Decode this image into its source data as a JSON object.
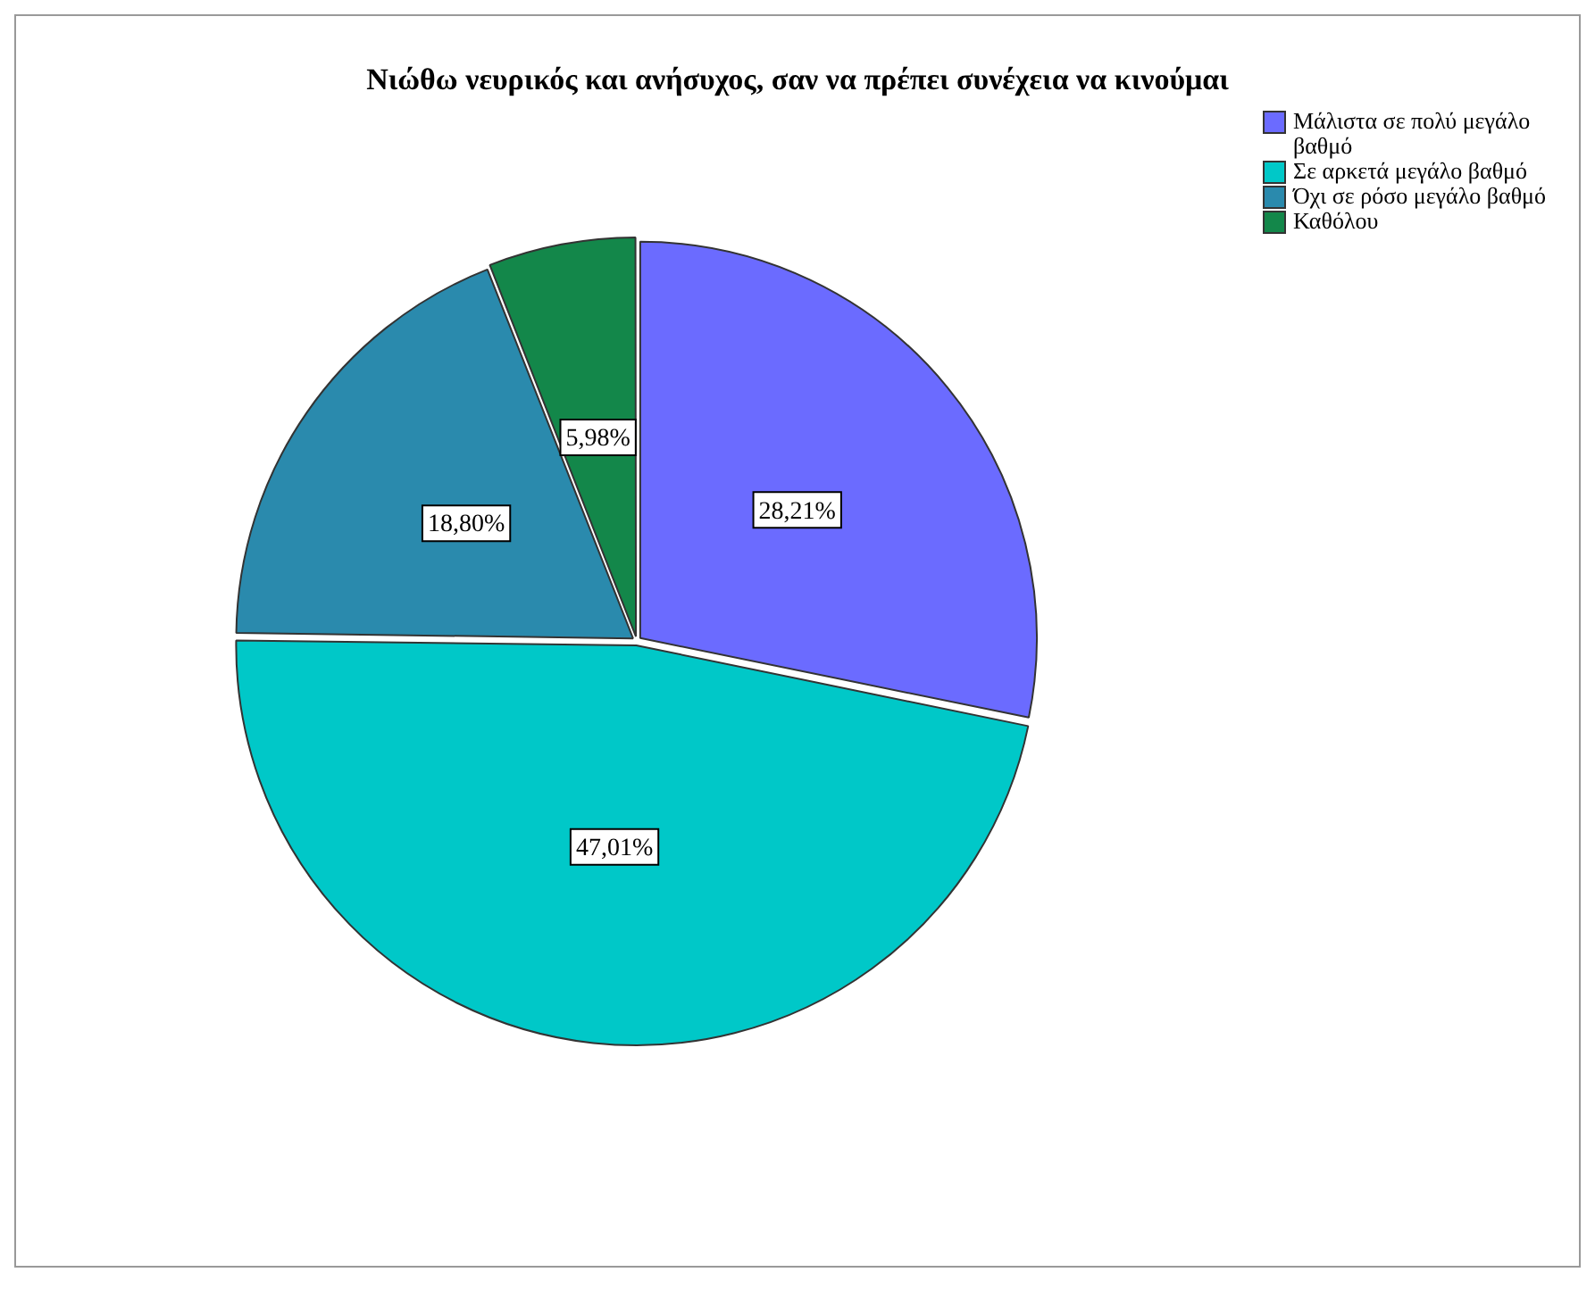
{
  "chart_data": {
    "type": "pie",
    "title": "Νιώθω νευρικός και ανήσυχος, σαν να πρέπει συνέχεια να κινούμαι",
    "categories": [
      "Μάλιστα σε πολύ μεγάλο βαθμό",
      "Σε αρκετά μεγάλο βαθμό",
      "Όχι σε ρόσο μεγάλο βαθμό",
      "Καθόλου"
    ],
    "values": [
      28.21,
      47.01,
      18.8,
      5.98
    ],
    "colors": [
      "#6b6bff",
      "#00c8c8",
      "#2a8aad",
      "#13874a"
    ],
    "value_labels": [
      "28,21%",
      "47,01%",
      "18,80%",
      "5,98%"
    ],
    "legend": "top right"
  }
}
